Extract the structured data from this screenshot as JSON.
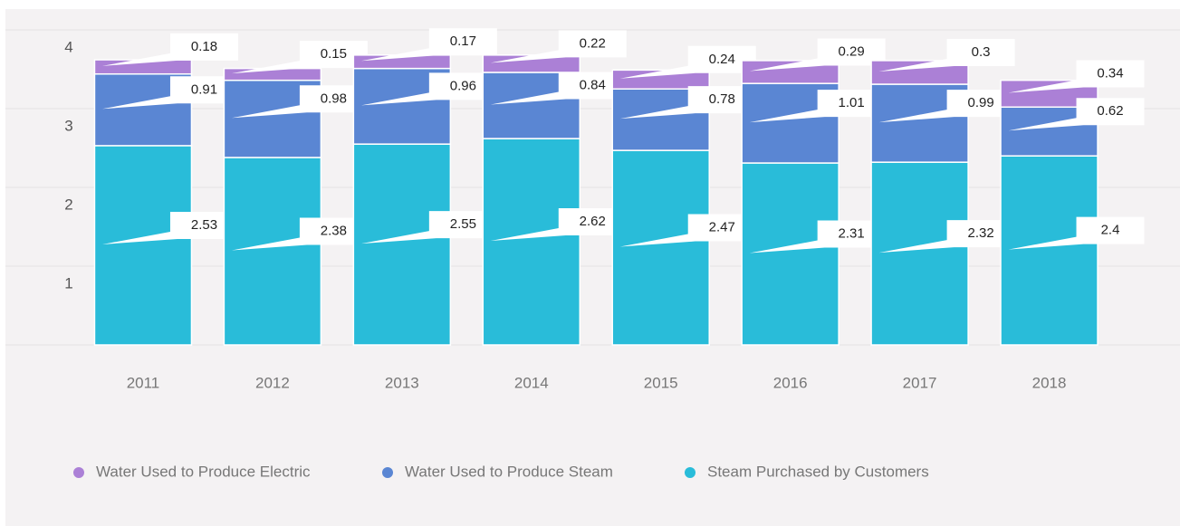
{
  "chart_data": {
    "type": "stacked_bar",
    "categories": [
      "2011",
      "2012",
      "2013",
      "2014",
      "2015",
      "2016",
      "2017",
      "2018"
    ],
    "series": [
      {
        "name": "Steam Purchased by Customers",
        "color": "#29bcd9",
        "values": [
          2.53,
          2.38,
          2.55,
          2.62,
          2.47,
          2.31,
          2.32,
          2.4
        ]
      },
      {
        "name": "Water Used to Produce Steam",
        "color": "#5a86d3",
        "values": [
          0.91,
          0.98,
          0.96,
          0.84,
          0.78,
          1.01,
          0.99,
          0.62
        ]
      },
      {
        "name": "Water Used to Produce Electric",
        "color": "#ab80d6",
        "values": [
          0.18,
          0.15,
          0.17,
          0.22,
          0.24,
          0.29,
          0.3,
          0.34
        ]
      }
    ],
    "legend_order": [
      2,
      1,
      0
    ],
    "ylim": [
      0,
      4
    ],
    "yticks": [
      1,
      2,
      3,
      4
    ],
    "grid": true
  }
}
